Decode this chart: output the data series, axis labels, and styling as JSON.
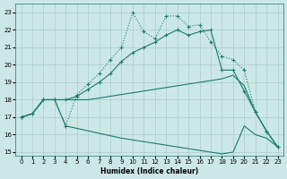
{
  "bg_color": "#cce8e6",
  "grid_color": "#aacccc",
  "line_color": "#1a7a6e",
  "x_label": "Humidex (Indice chaleur)",
  "ylim": [
    14.8,
    23.5
  ],
  "xlim": [
    -0.5,
    23.5
  ],
  "yticks": [
    15,
    16,
    17,
    18,
    19,
    20,
    21,
    22,
    23
  ],
  "xticks": [
    0,
    1,
    2,
    3,
    4,
    5,
    6,
    7,
    8,
    9,
    10,
    11,
    12,
    13,
    14,
    15,
    16,
    17,
    18,
    19,
    20,
    21,
    22,
    23
  ],
  "curve_min_x": [
    0,
    1,
    2,
    3,
    4,
    9,
    10,
    11,
    12,
    13,
    14,
    15,
    16,
    17,
    18,
    19,
    20,
    21,
    22,
    23
  ],
  "curve_min_y": [
    17.0,
    17.2,
    18.0,
    18.0,
    16.5,
    15.8,
    15.7,
    15.6,
    15.5,
    15.4,
    15.3,
    15.2,
    15.1,
    15.0,
    14.9,
    15.0,
    16.5,
    16.0,
    15.8,
    15.3
  ],
  "curve_flat_x": [
    0,
    1,
    2,
    3,
    4,
    5,
    6,
    7,
    8,
    9,
    10,
    11,
    12,
    13,
    14,
    15,
    16,
    17,
    18,
    19,
    20,
    21,
    22,
    23
  ],
  "curve_flat_y": [
    17.0,
    17.2,
    18.0,
    18.0,
    18.0,
    18.0,
    18.0,
    18.1,
    18.2,
    18.3,
    18.4,
    18.5,
    18.6,
    18.7,
    18.8,
    18.9,
    19.0,
    19.1,
    19.2,
    19.4,
    18.8,
    17.3,
    16.2,
    15.3
  ],
  "curve_mid_x": [
    0,
    1,
    2,
    3,
    4,
    5,
    6,
    7,
    8,
    9,
    10,
    11,
    12,
    13,
    14,
    15,
    16,
    17,
    18,
    19,
    20,
    21,
    22,
    23
  ],
  "curve_mid_y": [
    17.0,
    17.2,
    18.0,
    18.0,
    18.0,
    18.2,
    18.6,
    19.0,
    19.5,
    20.2,
    20.7,
    21.0,
    21.3,
    21.7,
    22.0,
    21.7,
    21.9,
    22.0,
    19.7,
    19.7,
    18.5,
    17.3,
    16.2,
    15.3
  ],
  "curve_top_x": [
    0,
    1,
    2,
    3,
    4,
    5,
    6,
    7,
    8,
    9,
    10,
    11,
    12,
    13,
    14,
    15,
    16,
    17,
    18,
    19,
    20,
    21,
    22,
    23
  ],
  "curve_top_y": [
    17.0,
    17.2,
    18.0,
    18.0,
    16.5,
    18.3,
    18.9,
    19.5,
    20.3,
    21.0,
    23.0,
    21.9,
    21.5,
    22.8,
    22.8,
    22.2,
    22.3,
    21.3,
    20.5,
    20.3,
    19.7,
    17.3,
    16.2,
    15.3
  ]
}
